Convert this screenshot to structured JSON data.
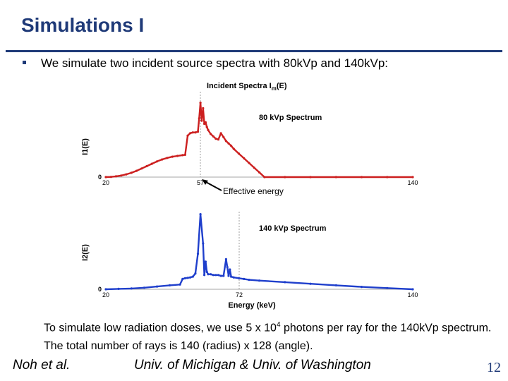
{
  "slide": {
    "title": "Simulations I",
    "bullet": "We simulate two incident source spectra with 80kVp and 140kVp:",
    "note_pre": "To simulate low radiation doses, we use 5 x 10",
    "note_sup": "4",
    "note_post": " photons per ray for the 140kVp spectrum. The total number of rays is 140 (radius) x 128 (angle).",
    "footer_left": "Noh et al.",
    "footer_center": "Univ. of Michigan & Univ. of Washington",
    "page_number": "12"
  },
  "colors": {
    "title": "#1f3a78",
    "series_80": "#cc1f1f",
    "series_140": "#1f3fcc"
  },
  "chart_data": [
    {
      "type": "line",
      "title": "Incident Spectra I_m(E)",
      "series_label": "80 kVp Spectrum",
      "ylabel": "I1(E)",
      "ytick": "0",
      "xlim": [
        20,
        140
      ],
      "xticks": [
        "20",
        "57",
        "140"
      ],
      "annotation": "Effective energy",
      "annotation_x": 57,
      "series": [
        {
          "name": "80 kVp",
          "x": [
            20,
            22,
            24,
            26,
            28,
            30,
            32,
            34,
            36,
            38,
            40,
            42,
            44,
            46,
            48,
            50,
            51,
            52,
            53,
            54,
            55,
            56,
            56.5,
            57,
            57.5,
            58,
            58.5,
            59,
            59.5,
            60,
            61,
            62,
            63,
            64,
            65,
            66,
            67,
            68,
            69,
            70,
            72,
            74,
            76,
            78,
            80,
            82,
            90,
            100,
            110,
            120,
            130,
            140
          ],
          "y": [
            0,
            0.003,
            0.01,
            0.02,
            0.035,
            0.055,
            0.08,
            0.11,
            0.14,
            0.17,
            0.2,
            0.225,
            0.245,
            0.26,
            0.27,
            0.28,
            0.285,
            0.53,
            0.56,
            0.57,
            0.57,
            0.58,
            0.75,
            0.95,
            0.72,
            0.88,
            0.68,
            0.7,
            0.64,
            0.6,
            0.55,
            0.52,
            0.49,
            0.48,
            0.56,
            0.51,
            0.46,
            0.43,
            0.4,
            0.36,
            0.3,
            0.24,
            0.18,
            0.12,
            0.06,
            0,
            0,
            0,
            0,
            0,
            0,
            0
          ]
        }
      ]
    },
    {
      "type": "line",
      "series_label": "140 kVp Spectrum",
      "ylabel": "I2(E)",
      "ytick": "0",
      "xlim": [
        20,
        140
      ],
      "xticks": [
        "20",
        "72",
        "140"
      ],
      "xlabel": "Energy (keV)",
      "series": [
        {
          "name": "140 kVp",
          "x": [
            20,
            25,
            30,
            35,
            40,
            45,
            49,
            50,
            51,
            52,
            53,
            54,
            55,
            56,
            57,
            58,
            58.5,
            59,
            59.5,
            60,
            61,
            62,
            63,
            64,
            65,
            66,
            67,
            67.5,
            68,
            68.5,
            69,
            70,
            72,
            74,
            76,
            80,
            90,
            100,
            110,
            120,
            130,
            140
          ],
          "y": [
            0,
            0.005,
            0.01,
            0.02,
            0.035,
            0.05,
            0.06,
            0.13,
            0.14,
            0.145,
            0.15,
            0.16,
            0.2,
            0.45,
            0.95,
            0.58,
            0.18,
            0.35,
            0.22,
            0.19,
            0.19,
            0.18,
            0.18,
            0.18,
            0.17,
            0.17,
            0.38,
            0.28,
            0.17,
            0.25,
            0.16,
            0.15,
            0.14,
            0.13,
            0.12,
            0.11,
            0.09,
            0.07,
            0.05,
            0.03,
            0.015,
            0
          ]
        }
      ]
    }
  ]
}
